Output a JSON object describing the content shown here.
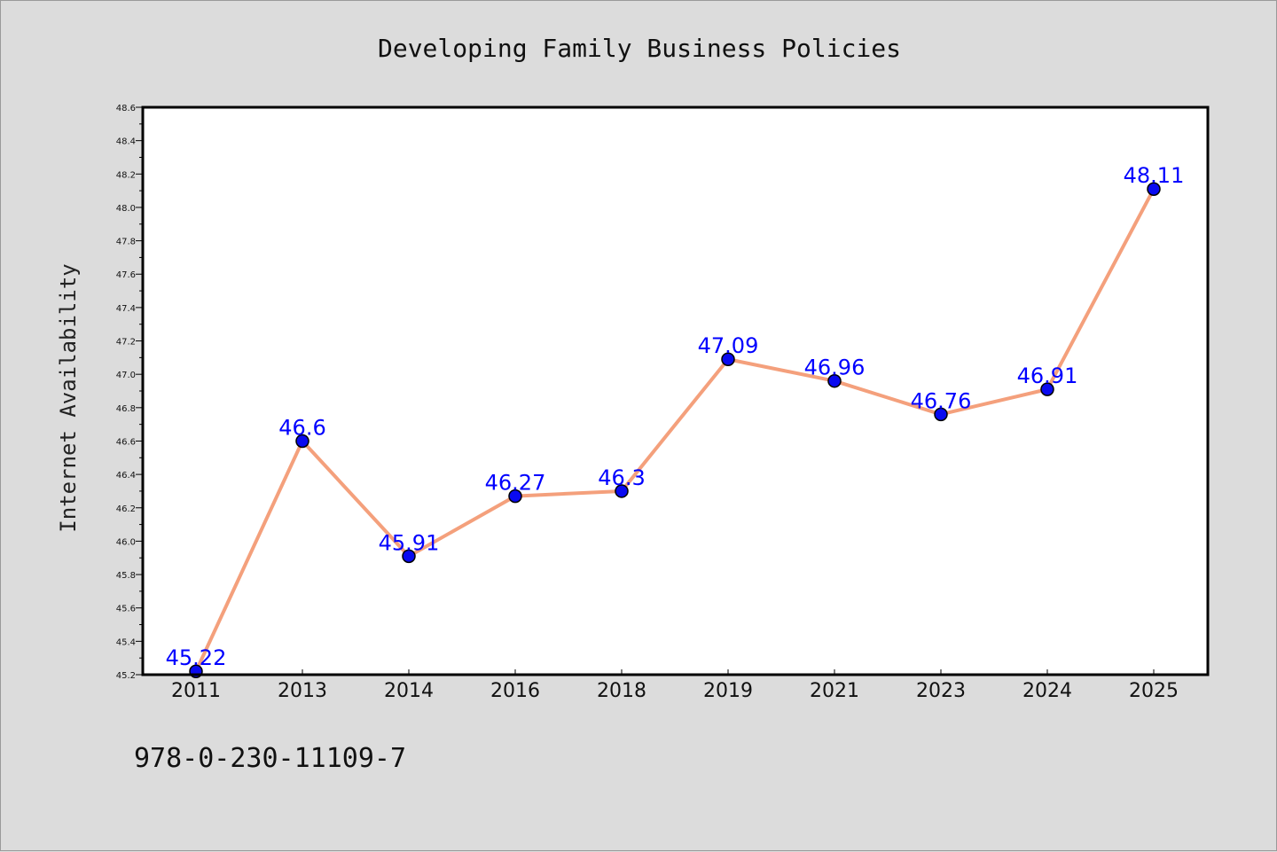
{
  "chart_data": {
    "type": "line",
    "title": "Developing Family Business Policies",
    "xlabel": "",
    "ylabel": "Internet Availability",
    "categories": [
      "2011",
      "2013",
      "2014",
      "2016",
      "2018",
      "2019",
      "2021",
      "2023",
      "2024",
      "2025"
    ],
    "series": [
      {
        "values": [
          45.22,
          46.6,
          45.91,
          46.27,
          46.3,
          47.09,
          46.96,
          46.76,
          46.91,
          48.11
        ],
        "data_labels": [
          "45.22",
          "46.6",
          "45.91",
          "46.27",
          "46.3",
          "47.09",
          "46.96",
          "46.76",
          "46.91",
          "48.11"
        ]
      }
    ],
    "ylim": [
      45.2,
      48.6
    ],
    "yticks": [
      "45.2",
      "45.4",
      "45.6",
      "45.8",
      "46.0",
      "46.2",
      "46.4",
      "46.6",
      "46.8",
      "47.0",
      "47.2",
      "47.4",
      "47.6",
      "47.8",
      "48.0",
      "48.2",
      "48.4",
      "48.6"
    ],
    "grid": false,
    "legend": "none",
    "colors": {
      "line": "#f4a07c",
      "marker": "#0a0af0",
      "marker_edge": "#000000",
      "data_label": "#0000ff",
      "plot_background": "#ffffff",
      "page_background": "#dcdcdc"
    }
  },
  "footer_note": "978-0-230-11109-7"
}
